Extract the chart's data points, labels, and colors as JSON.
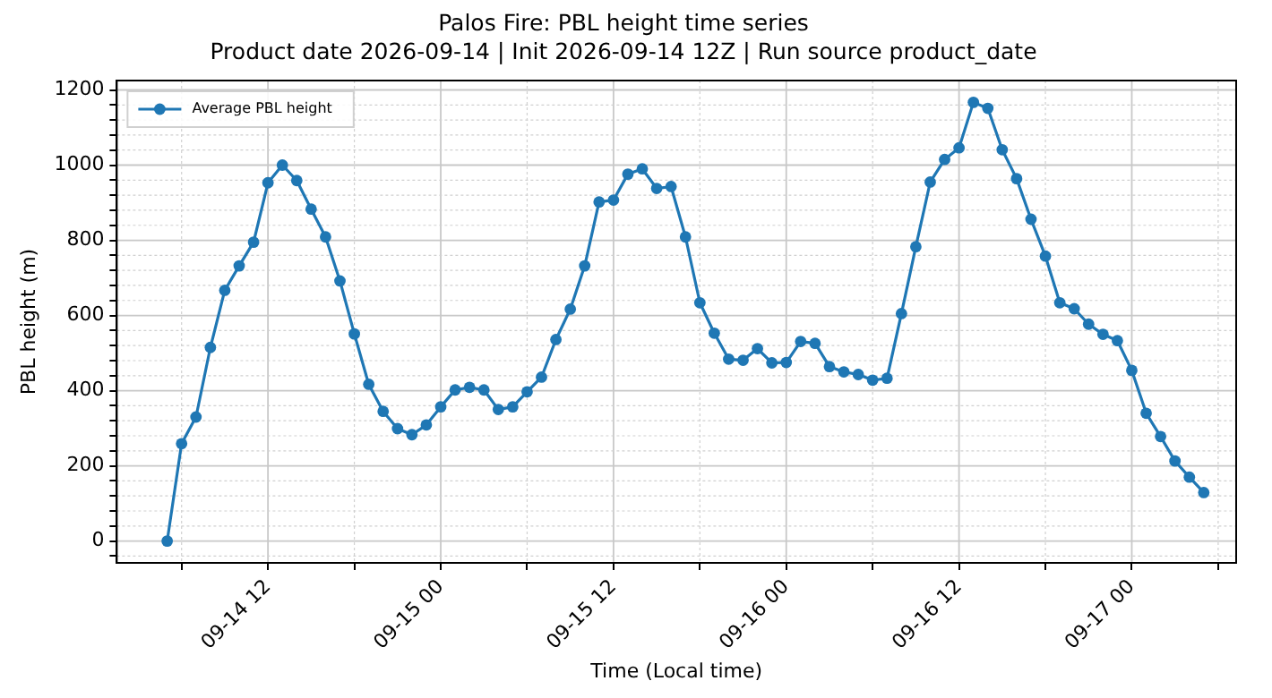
{
  "chart_data": {
    "type": "line",
    "title": "Palos Fire: PBL height time series",
    "subtitle": "Product date 2026-09-14 | Init 2026-09-14 12Z | Run source product_date",
    "xlabel": "Time (Local time)",
    "ylabel": "PBL height (m)",
    "x": [
      "2026-09-14T05:00",
      "2026-09-14T06:00",
      "2026-09-14T07:00",
      "2026-09-14T08:00",
      "2026-09-14T09:00",
      "2026-09-14T10:00",
      "2026-09-14T11:00",
      "2026-09-14T12:00",
      "2026-09-14T13:00",
      "2026-09-14T14:00",
      "2026-09-14T15:00",
      "2026-09-14T16:00",
      "2026-09-14T17:00",
      "2026-09-14T18:00",
      "2026-09-14T19:00",
      "2026-09-14T20:00",
      "2026-09-14T21:00",
      "2026-09-14T22:00",
      "2026-09-14T23:00",
      "2026-09-15T00:00",
      "2026-09-15T01:00",
      "2026-09-15T02:00",
      "2026-09-15T03:00",
      "2026-09-15T04:00",
      "2026-09-15T05:00",
      "2026-09-15T06:00",
      "2026-09-15T07:00",
      "2026-09-15T08:00",
      "2026-09-15T09:00",
      "2026-09-15T10:00",
      "2026-09-15T11:00",
      "2026-09-15T12:00",
      "2026-09-15T13:00",
      "2026-09-15T14:00",
      "2026-09-15T15:00",
      "2026-09-15T16:00",
      "2026-09-15T17:00",
      "2026-09-15T18:00",
      "2026-09-15T19:00",
      "2026-09-15T20:00",
      "2026-09-15T21:00",
      "2026-09-15T22:00",
      "2026-09-15T23:00",
      "2026-09-16T00:00",
      "2026-09-16T01:00",
      "2026-09-16T02:00",
      "2026-09-16T03:00",
      "2026-09-16T04:00",
      "2026-09-16T05:00",
      "2026-09-16T06:00",
      "2026-09-16T07:00",
      "2026-09-16T08:00",
      "2026-09-16T09:00",
      "2026-09-16T10:00",
      "2026-09-16T11:00",
      "2026-09-16T12:00",
      "2026-09-16T13:00",
      "2026-09-16T14:00",
      "2026-09-16T15:00",
      "2026-09-16T16:00",
      "2026-09-16T17:00",
      "2026-09-16T18:00",
      "2026-09-16T19:00",
      "2026-09-16T20:00",
      "2026-09-16T21:00",
      "2026-09-16T22:00",
      "2026-09-16T23:00",
      "2026-09-17T00:00",
      "2026-09-17T01:00",
      "2026-09-17T02:00",
      "2026-09-17T03:00",
      "2026-09-17T04:00",
      "2026-09-17T05:00"
    ],
    "series": [
      {
        "name": "Average PBL height",
        "color": "#1f77b4",
        "values": [
          0,
          259,
          330,
          515,
          667,
          732,
          795,
          953,
          1000,
          959,
          883,
          809,
          692,
          551,
          417,
          345,
          299,
          283,
          309,
          357,
          402,
          409,
          402,
          350,
          357,
          397,
          436,
          536,
          617,
          732,
          902,
          907,
          976,
          990,
          938,
          943,
          809,
          634,
          553,
          484,
          481,
          512,
          474,
          475,
          531,
          526,
          464,
          450,
          443,
          428,
          433,
          605,
          783,
          955,
          1015,
          1046,
          1167,
          1151,
          1041,
          964,
          856,
          758,
          634,
          618,
          577,
          550,
          533,
          454,
          340,
          278,
          213,
          170,
          129
        ]
      }
    ],
    "xlim": [
      "2026-09-14T01:30",
      "2026-09-17T07:15"
    ],
    "xticks": [
      {
        "value": "2026-09-14T06:00",
        "label": null
      },
      {
        "value": "2026-09-14T12:00",
        "label": "09-14 12"
      },
      {
        "value": "2026-09-14T18:00",
        "label": null
      },
      {
        "value": "2026-09-15T00:00",
        "label": "09-15 00"
      },
      {
        "value": "2026-09-15T06:00",
        "label": null
      },
      {
        "value": "2026-09-15T12:00",
        "label": "09-15 12"
      },
      {
        "value": "2026-09-15T18:00",
        "label": null
      },
      {
        "value": "2026-09-16T00:00",
        "label": "09-16 00"
      },
      {
        "value": "2026-09-16T06:00",
        "label": null
      },
      {
        "value": "2026-09-16T12:00",
        "label": "09-16 12"
      },
      {
        "value": "2026-09-16T18:00",
        "label": null
      },
      {
        "value": "2026-09-17T00:00",
        "label": "09-17 00"
      },
      {
        "value": "2026-09-17T06:00",
        "label": null
      }
    ],
    "ylim": [
      -58,
      1225
    ],
    "yticks": [
      {
        "value": -40,
        "label": null
      },
      0,
      {
        "value": 40,
        "label": null
      },
      {
        "value": 80,
        "label": null
      },
      {
        "value": 120,
        "label": null
      },
      {
        "value": 160,
        "label": null
      },
      200,
      {
        "value": 240,
        "label": null
      },
      {
        "value": 280,
        "label": null
      },
      {
        "value": 320,
        "label": null
      },
      {
        "value": 360,
        "label": null
      },
      400,
      {
        "value": 440,
        "label": null
      },
      {
        "value": 480,
        "label": null
      },
      {
        "value": 520,
        "label": null
      },
      {
        "value": 560,
        "label": null
      },
      600,
      {
        "value": 640,
        "label": null
      },
      {
        "value": 680,
        "label": null
      },
      {
        "value": 720,
        "label": null
      },
      {
        "value": 760,
        "label": null
      },
      800,
      {
        "value": 840,
        "label": null
      },
      {
        "value": 880,
        "label": null
      },
      {
        "value": 920,
        "label": null
      },
      {
        "value": 960,
        "label": null
      },
      1000,
      {
        "value": 1040,
        "label": null
      },
      {
        "value": 1080,
        "label": null
      },
      {
        "value": 1120,
        "label": null
      },
      {
        "value": 1160,
        "label": null
      },
      1200
    ],
    "grid": true,
    "legend": "top left",
    "marker": "circle",
    "line_style": "solid"
  }
}
